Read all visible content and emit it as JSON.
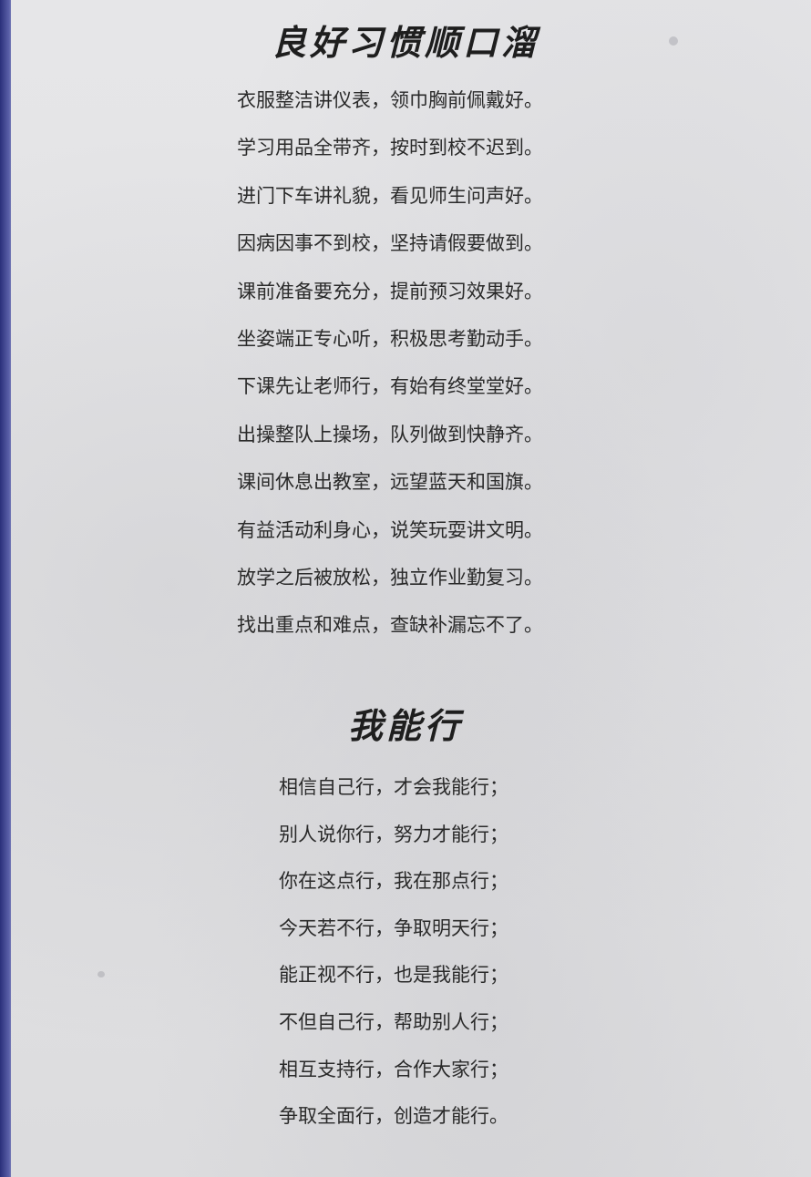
{
  "poem1": {
    "title": "良好习惯顺口溜",
    "lines": [
      "衣服整洁讲仪表，领巾胸前佩戴好。",
      "学习用品全带齐，按时到校不迟到。",
      "进门下车讲礼貌，看见师生问声好。",
      "因病因事不到校，坚持请假要做到。",
      "课前准备要充分，提前预习效果好。",
      "坐姿端正专心听，积极思考勤动手。",
      "下课先让老师行，有始有终堂堂好。",
      "出操整队上操场，队列做到快静齐。",
      "课间休息出教室，远望蓝天和国旗。",
      "有益活动利身心，说笑玩耍讲文明。",
      "放学之后被放松，独立作业勤复习。",
      "找出重点和难点，查缺补漏忘不了。"
    ]
  },
  "poem2": {
    "title": "我能行",
    "lines": [
      "相信自己行，才会我能行；",
      "别人说你行，努力才能行；",
      "你在这点行，我在那点行；",
      "今天若不行，争取明天行；",
      "能正视不行，也是我能行；",
      "不但自己行，帮助别人行；",
      "相互支持行，合作大家行；",
      "争取全面行，创造才能行。"
    ]
  }
}
